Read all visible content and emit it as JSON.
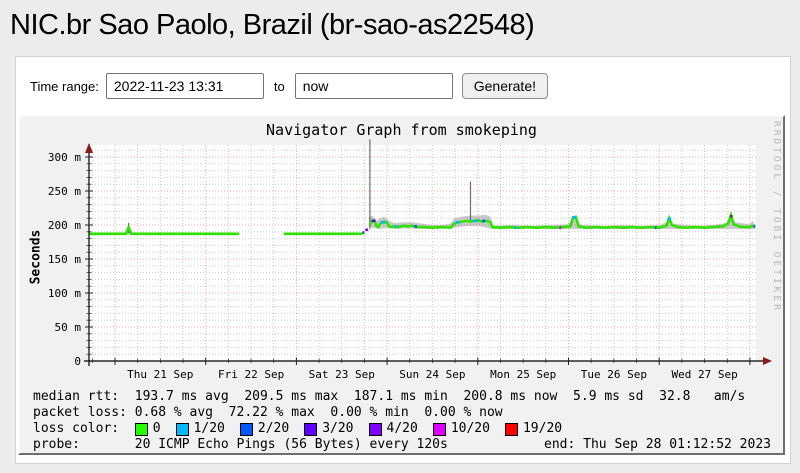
{
  "page": {
    "title": "NIC.br Sao Paolo, Brazil (br-sao-as22548)"
  },
  "form": {
    "label": "Time range:",
    "start_value": "2022-11-23 13:31",
    "separator": "to",
    "end_value": "now",
    "submit_label": "Generate!"
  },
  "graph": {
    "title": "Navigator Graph from smokeping",
    "watermark": "RRDTOOL / TOBI OETIKER",
    "y_axis_label": "Seconds",
    "stats": {
      "median_rtt": "median rtt:  193.7 ms avg  209.5 ms max  187.1 ms min  200.8 ms now  5.9 ms sd  32.8   am/s",
      "packet_loss": "packet loss: 0.68 % avg  72.22 % max  0.00 % min  0.00 % now",
      "loss_color_label": "loss color:  ",
      "loss_colors": [
        {
          "label": "0",
          "color": "#26ff00"
        },
        {
          "label": "1/20",
          "color": "#00b8ff"
        },
        {
          "label": "2/20",
          "color": "#0059ff"
        },
        {
          "label": "3/20",
          "color": "#5e00ff"
        },
        {
          "label": "4/20",
          "color": "#7e00ff"
        },
        {
          "label": "10/20",
          "color": "#dd00ff"
        },
        {
          "label": "19/20",
          "color": "#ff0000"
        }
      ],
      "probe_line": "probe:       20 ICMP Echo Pings (56 Bytes) every 120s",
      "end_text": "end: Thu Sep 28 01:12:52 2023"
    }
  },
  "chart_data": {
    "type": "line",
    "title": "Navigator Graph from smokeping",
    "ylabel": "Seconds",
    "xlabel": "",
    "grid": true,
    "legend_position": "none",
    "ylim_ms": [
      0,
      323
    ],
    "y_ticks": [
      {
        "value": 0,
        "label": "0"
      },
      {
        "value": 50,
        "label": "50 m"
      },
      {
        "value": 100,
        "label": "100 m"
      },
      {
        "value": 150,
        "label": "150 m"
      },
      {
        "value": 200,
        "label": "200 m"
      },
      {
        "value": 250,
        "label": "250 m"
      },
      {
        "value": 300,
        "label": "300 m"
      }
    ],
    "x_ticks": [
      "Thu 21 Sep",
      "Fri 22 Sep",
      "Sat 23 Sep",
      "Sun 24 Sep",
      "Mon 25 Sep",
      "Tue 26 Sep",
      "Wed 27 Sep"
    ],
    "x_units": "days since Thu 21 Sep 00:00",
    "x_range_days": [
      -0.28,
      7.07
    ],
    "series_name": "median RTT (ms)",
    "median_segments": [
      [
        [
          -0.28,
          187
        ],
        [
          0.12,
          187
        ],
        [
          0.15,
          196
        ],
        [
          0.18,
          187
        ],
        [
          1.37,
          187
        ]
      ],
      [
        [
          1.86,
          187
        ],
        [
          2.72,
          187
        ],
        [
          2.74,
          189
        ]
      ],
      [
        [
          2.81,
          200
        ],
        [
          2.83,
          206
        ],
        [
          2.86,
          207
        ],
        [
          2.88,
          199
        ],
        [
          2.9,
          197
        ],
        [
          2.93,
          203
        ],
        [
          2.97,
          205
        ],
        [
          3.0,
          203
        ],
        [
          3.03,
          197
        ],
        [
          3.08,
          198
        ],
        [
          3.13,
          197
        ],
        [
          3.18,
          199
        ],
        [
          3.23,
          198
        ],
        [
          3.28,
          199
        ],
        [
          3.33,
          197
        ],
        [
          3.4,
          197
        ],
        [
          3.5,
          196
        ],
        [
          3.6,
          197
        ],
        [
          3.7,
          196
        ],
        [
          3.74,
          202
        ],
        [
          3.78,
          204
        ],
        [
          3.83,
          205
        ],
        [
          3.88,
          206
        ],
        [
          3.92,
          205
        ],
        [
          3.96,
          206
        ],
        [
          4.0,
          207
        ],
        [
          4.05,
          205
        ],
        [
          4.1,
          206
        ],
        [
          4.14,
          204
        ],
        [
          4.16,
          197
        ],
        [
          4.25,
          196
        ],
        [
          4.35,
          197
        ],
        [
          4.45,
          196
        ],
        [
          4.55,
          197
        ],
        [
          4.65,
          196
        ],
        [
          4.75,
          197
        ],
        [
          4.85,
          196
        ],
        [
          4.95,
          197
        ],
        [
          5.02,
          198
        ],
        [
          5.05,
          211
        ],
        [
          5.08,
          212
        ],
        [
          5.11,
          198
        ],
        [
          5.2,
          196
        ],
        [
          5.3,
          197
        ],
        [
          5.4,
          196
        ],
        [
          5.5,
          197
        ],
        [
          5.6,
          196
        ],
        [
          5.7,
          197
        ],
        [
          5.8,
          196
        ],
        [
          5.9,
          197
        ],
        [
          6.0,
          196
        ],
        [
          6.08,
          199
        ],
        [
          6.11,
          210
        ],
        [
          6.14,
          200
        ],
        [
          6.2,
          197
        ],
        [
          6.3,
          196
        ],
        [
          6.4,
          197
        ],
        [
          6.5,
          196
        ],
        [
          6.6,
          197
        ],
        [
          6.7,
          198
        ],
        [
          6.76,
          202
        ],
        [
          6.79,
          214
        ],
        [
          6.82,
          201
        ],
        [
          6.9,
          197
        ],
        [
          7.0,
          197
        ],
        [
          7.03,
          199
        ],
        [
          7.05,
          198
        ]
      ]
    ],
    "smoke_bands": [
      [
        [
          0.11,
          188
        ],
        [
          0.15,
          204
        ],
        [
          0.19,
          188
        ],
        [
          0.19,
          185.5
        ],
        [
          0.11,
          185.5
        ]
      ],
      [
        [
          2.8,
          212
        ],
        [
          2.84,
          214
        ],
        [
          2.88,
          206
        ],
        [
          2.92,
          210
        ],
        [
          2.97,
          212
        ],
        [
          3.02,
          206
        ],
        [
          3.08,
          203
        ],
        [
          3.18,
          204
        ],
        [
          3.28,
          204
        ],
        [
          3.38,
          202
        ],
        [
          3.5,
          200
        ],
        [
          3.6,
          200
        ],
        [
          3.7,
          202
        ],
        [
          3.74,
          210
        ],
        [
          3.85,
          213
        ],
        [
          3.92,
          214
        ],
        [
          4.0,
          214
        ],
        [
          4.08,
          215
        ],
        [
          4.14,
          212
        ],
        [
          4.16,
          204
        ],
        [
          4.16,
          194
        ],
        [
          4.0,
          199
        ],
        [
          3.85,
          198
        ],
        [
          3.74,
          196
        ],
        [
          3.6,
          194
        ],
        [
          3.4,
          194
        ],
        [
          3.2,
          195
        ],
        [
          3.08,
          194
        ],
        [
          3.02,
          196
        ],
        [
          2.92,
          194
        ],
        [
          2.84,
          196
        ],
        [
          2.8,
          192
        ]
      ],
      [
        [
          4.16,
          199
        ],
        [
          4.4,
          200
        ],
        [
          4.6,
          199
        ],
        [
          4.8,
          200
        ],
        [
          5.0,
          201
        ],
        [
          5.03,
          207
        ],
        [
          5.06,
          214
        ],
        [
          5.1,
          204
        ],
        [
          5.15,
          200
        ],
        [
          5.4,
          199
        ],
        [
          5.6,
          200
        ],
        [
          5.8,
          199
        ],
        [
          6.0,
          200
        ],
        [
          6.08,
          204
        ],
        [
          6.11,
          212
        ],
        [
          6.15,
          202
        ],
        [
          6.4,
          199
        ],
        [
          6.6,
          200
        ],
        [
          6.74,
          203
        ],
        [
          6.79,
          216
        ],
        [
          6.84,
          204
        ],
        [
          7.0,
          201
        ],
        [
          7.03,
          206
        ],
        [
          7.06,
          200
        ],
        [
          7.06,
          194
        ],
        [
          4.16,
          194
        ]
      ]
    ],
    "spikes": [
      [
        2.81,
        196,
        326
      ],
      [
        3.92,
        206,
        264
      ],
      [
        0.15,
        188,
        203
      ],
      [
        6.79,
        214,
        219
      ]
    ],
    "loss_segments": [
      {
        "x1": 2.73,
        "x2": 2.75,
        "v": 189,
        "c": "#0059ff"
      },
      {
        "x1": 2.76,
        "x2": 2.79,
        "v": 193,
        "c": "#7e00ff"
      },
      {
        "x1": 2.83,
        "x2": 2.87,
        "v": 206,
        "c": "#5e00ff"
      },
      {
        "x1": 2.93,
        "x2": 2.98,
        "v": 204,
        "c": "#00b8ff"
      },
      {
        "x1": 3.08,
        "x2": 3.11,
        "v": 198,
        "c": "#00b8ff"
      },
      {
        "x1": 3.3,
        "x2": 3.33,
        "v": 198,
        "c": "#0059ff"
      },
      {
        "x1": 3.76,
        "x2": 3.8,
        "v": 204,
        "c": "#00b8ff"
      },
      {
        "x1": 3.95,
        "x2": 4.0,
        "v": 206,
        "c": "#00b8ff"
      },
      {
        "x1": 4.05,
        "x2": 4.08,
        "v": 206,
        "c": "#0059ff"
      },
      {
        "x1": 4.4,
        "x2": 4.43,
        "v": 196,
        "c": "#00b8ff"
      },
      {
        "x1": 4.9,
        "x2": 4.92,
        "v": 196,
        "c": "#dd00ff"
      },
      {
        "x1": 5.04,
        "x2": 5.08,
        "v": 211,
        "c": "#00b8ff"
      },
      {
        "x1": 5.95,
        "x2": 5.97,
        "v": 196,
        "c": "#0059ff"
      },
      {
        "x1": 6.09,
        "x2": 6.13,
        "v": 209,
        "c": "#00b8ff"
      },
      {
        "x1": 6.78,
        "x2": 6.81,
        "v": 213,
        "c": "#444444"
      },
      {
        "x1": 7.04,
        "x2": 7.06,
        "v": 198,
        "c": "#0059ff"
      }
    ],
    "colors": {
      "median": "#2fe300",
      "smoke": "#8a8a8a",
      "major_grid": "#ff0000",
      "minor_grid": "#c9c9c9",
      "axis": "#000000",
      "arrow": "#8b1a1a"
    }
  }
}
